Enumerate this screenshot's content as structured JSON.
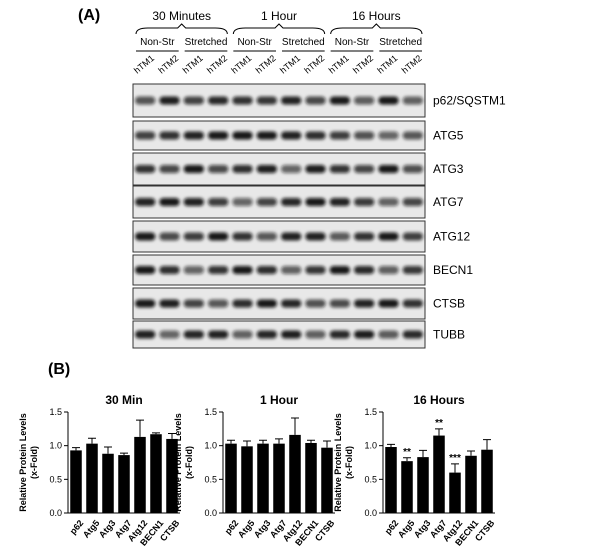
{
  "panel_a": {
    "label": "(A)",
    "groups": [
      {
        "title": "30 Minutes",
        "conditions": [
          {
            "name": "Non-Str",
            "lanes": [
              "hTM1",
              "hTM2"
            ]
          },
          {
            "name": "Stretched",
            "lanes": [
              "hTM1",
              "hTM2"
            ]
          }
        ]
      },
      {
        "title": "1 Hour",
        "conditions": [
          {
            "name": "Non-Str",
            "lanes": [
              "hTM1",
              "hTM2"
            ]
          },
          {
            "name": "Stretched",
            "lanes": [
              "hTM1",
              "hTM2"
            ]
          }
        ]
      },
      {
        "title": "16 Hours",
        "conditions": [
          {
            "name": "Non-Str",
            "lanes": [
              "hTM1",
              "hTM2"
            ]
          },
          {
            "name": "Stretched",
            "lanes": [
              "hTM1",
              "hTM2"
            ]
          }
        ]
      }
    ],
    "blots": [
      "p62/SQSTM1",
      "ATG5",
      "ATG3",
      "ATG7",
      "ATG12",
      "BECN1",
      "CTSB",
      "TUBB"
    ]
  },
  "panel_b": {
    "label": "(B)"
  },
  "chart_data": [
    {
      "type": "bar",
      "title": "30 Min",
      "y_label": [
        "Relative Protein Levels",
        "(x-Fold)"
      ],
      "categories": [
        "p62",
        "Atg5",
        "Atg3",
        "Atg7",
        "Atg12",
        "BECN1",
        "CTSB"
      ],
      "values": [
        0.93,
        1.03,
        0.88,
        0.86,
        1.13,
        1.17,
        1.1
      ],
      "errors": [
        0.04,
        0.08,
        0.1,
        0.03,
        0.25,
        0.02,
        0.08
      ],
      "significance": [
        null,
        null,
        null,
        null,
        null,
        null,
        null
      ],
      "color": "#000000",
      "ylim": [
        0,
        1.5
      ],
      "yticks": [
        {
          "value": 0,
          "label": "0.0"
        },
        {
          "value": 0.5,
          "label": "0.5"
        },
        {
          "value": 1,
          "label": "1.0"
        },
        {
          "value": 1.5,
          "label": "1.5"
        }
      ]
    },
    {
      "type": "bar",
      "title": "1 Hour",
      "y_label": [
        "Relative Protein Levels",
        "(x-Fold)"
      ],
      "categories": [
        "p62",
        "Atg5",
        "Atg3",
        "Atg7",
        "Atg12",
        "BECN1",
        "CTSB"
      ],
      "values": [
        1.03,
        0.99,
        1.03,
        1.03,
        1.16,
        1.04,
        0.97
      ],
      "errors": [
        0.05,
        0.08,
        0.05,
        0.07,
        0.25,
        0.04,
        0.1
      ],
      "significance": [
        null,
        null,
        null,
        null,
        null,
        null,
        null
      ],
      "color": "#000000",
      "ylim": [
        0,
        1.5
      ],
      "yticks": [
        {
          "value": 0,
          "label": "0.0"
        },
        {
          "value": 0.5,
          "label": "0.5"
        },
        {
          "value": 1,
          "label": "1.0"
        },
        {
          "value": 1.5,
          "label": "1.5"
        }
      ]
    },
    {
      "type": "bar",
      "title": "16 Hours",
      "y_label": [
        "Relative Protein Levels",
        "(x-Fold)"
      ],
      "categories": [
        "p62",
        "Atg5",
        "Atg3",
        "Atg7",
        "Atg12",
        "BECN1",
        "CTSB"
      ],
      "values": [
        0.98,
        0.77,
        0.83,
        1.15,
        0.6,
        0.85,
        0.94
      ],
      "errors": [
        0.04,
        0.05,
        0.1,
        0.1,
        0.13,
        0.07,
        0.15
      ],
      "significance": [
        null,
        "**",
        null,
        "**",
        "***",
        null,
        null
      ],
      "color": "#000000",
      "ylim": [
        0,
        1.5
      ],
      "yticks": [
        {
          "value": 0,
          "label": "0.0"
        },
        {
          "value": 0.5,
          "label": "0.5"
        },
        {
          "value": 1,
          "label": "1.0"
        },
        {
          "value": 1.5,
          "label": "1.5"
        }
      ]
    }
  ]
}
